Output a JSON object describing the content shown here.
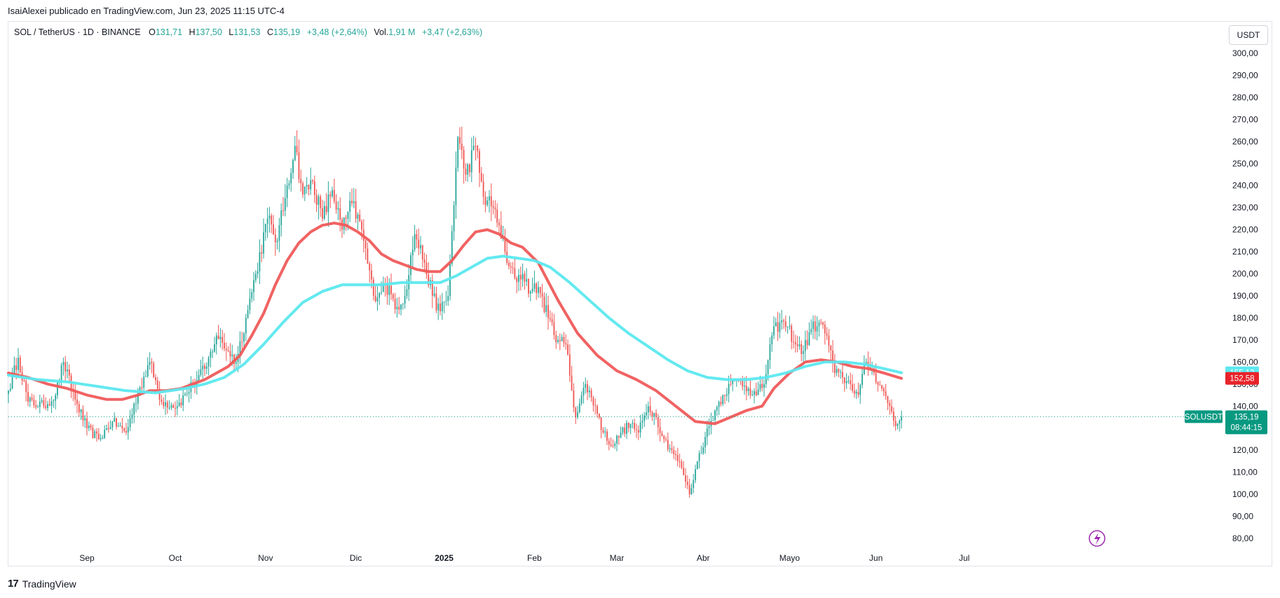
{
  "header": {
    "publisher_line": "IsaiAlexei publicado en TradingView.com, Jun 23, 2025 11:15 UTC-4"
  },
  "legend": {
    "symbol": "SOL / TetherUS · 1D · BINANCE",
    "open_label": "O",
    "open_value": "131,71",
    "high_label": "H",
    "high_value": "137,50",
    "low_label": "L",
    "low_value": "131,53",
    "close_label": "C",
    "close_value": "135,19",
    "change": "+3,48 (+2,64%)",
    "volume_label": "Vol.",
    "volume_value": "1,91 M",
    "volume_change": "+3,47 (+2,63%)"
  },
  "currency_button": "USDT",
  "brand": {
    "name": "TradingView",
    "logo": "17"
  },
  "colors": {
    "up": "#26a69a",
    "down": "#ef5350",
    "ma_fast": "#f05a5a",
    "ma_slow": "#5ce8ef",
    "last_price": "#089981",
    "ma_fast_badge": "#e8232a",
    "ma_slow_badge": "#5ce8ef",
    "lightning_icon": "#9c27b0"
  },
  "chart_data": {
    "type": "candlestick",
    "title": "SOL / TetherUS · 1D · BINANCE",
    "ylim": [
      75,
      303
    ],
    "y_ticks": [
      "300,00",
      "290,00",
      "280,00",
      "270,00",
      "260,00",
      "250,00",
      "240,00",
      "230,00",
      "220,00",
      "210,00",
      "200,00",
      "190,00",
      "180,00",
      "170,00",
      "160,00",
      "150,00",
      "140,00",
      "130,00",
      "120,00",
      "110,00",
      "100,00",
      "90,00",
      "80,00"
    ],
    "x_ticks": [
      "Sep",
      "Oct",
      "Nov",
      "Dic",
      "2025",
      "Feb",
      "Mar",
      "Abr",
      "Mayo",
      "Jun",
      "Jul"
    ],
    "x_ticks_bold": [
      "2025"
    ],
    "last_price": {
      "symbol": "SOLUSDT",
      "value": 135.19,
      "label": "135,19",
      "countdown": "08:44:15"
    },
    "ma_badges": [
      {
        "series": "ma_slow",
        "value": 155.12,
        "label": "155,12"
      },
      {
        "series": "ma_fast",
        "value": 152.58,
        "label": "152,58"
      }
    ],
    "close_anchors": [
      {
        "d": 0,
        "v": 147
      },
      {
        "d": 5,
        "v": 162
      },
      {
        "d": 10,
        "v": 142
      },
      {
        "d": 18,
        "v": 140
      },
      {
        "d": 24,
        "v": 145
      },
      {
        "d": 28,
        "v": 160
      },
      {
        "d": 34,
        "v": 143
      },
      {
        "d": 40,
        "v": 130
      },
      {
        "d": 46,
        "v": 125
      },
      {
        "d": 53,
        "v": 133
      },
      {
        "d": 60,
        "v": 128
      },
      {
        "d": 66,
        "v": 146
      },
      {
        "d": 72,
        "v": 160
      },
      {
        "d": 78,
        "v": 142
      },
      {
        "d": 86,
        "v": 140
      },
      {
        "d": 94,
        "v": 150
      },
      {
        "d": 101,
        "v": 158
      },
      {
        "d": 106,
        "v": 172
      },
      {
        "d": 112,
        "v": 165
      },
      {
        "d": 116,
        "v": 160
      },
      {
        "d": 121,
        "v": 180
      },
      {
        "d": 126,
        "v": 200
      },
      {
        "d": 132,
        "v": 225
      },
      {
        "d": 137,
        "v": 215
      },
      {
        "d": 142,
        "v": 240
      },
      {
        "d": 146,
        "v": 258
      },
      {
        "d": 150,
        "v": 236
      },
      {
        "d": 155,
        "v": 242
      },
      {
        "d": 160,
        "v": 225
      },
      {
        "d": 165,
        "v": 238
      },
      {
        "d": 170,
        "v": 220
      },
      {
        "d": 175,
        "v": 232
      },
      {
        "d": 180,
        "v": 220
      },
      {
        "d": 186,
        "v": 190
      },
      {
        "d": 192,
        "v": 195
      },
      {
        "d": 198,
        "v": 185
      },
      {
        "d": 202,
        "v": 190
      },
      {
        "d": 207,
        "v": 218
      },
      {
        "d": 212,
        "v": 205
      },
      {
        "d": 216,
        "v": 190
      },
      {
        "d": 220,
        "v": 183
      },
      {
        "d": 224,
        "v": 190
      },
      {
        "d": 229,
        "v": 262
      },
      {
        "d": 233,
        "v": 245
      },
      {
        "d": 238,
        "v": 258
      },
      {
        "d": 242,
        "v": 235
      },
      {
        "d": 247,
        "v": 230
      },
      {
        "d": 250,
        "v": 222
      },
      {
        "d": 254,
        "v": 205
      },
      {
        "d": 258,
        "v": 198
      },
      {
        "d": 262,
        "v": 200
      },
      {
        "d": 266,
        "v": 192
      },
      {
        "d": 270,
        "v": 194
      },
      {
        "d": 275,
        "v": 180
      },
      {
        "d": 280,
        "v": 170
      },
      {
        "d": 284,
        "v": 168
      },
      {
        "d": 289,
        "v": 135
      },
      {
        "d": 294,
        "v": 150
      },
      {
        "d": 299,
        "v": 140
      },
      {
        "d": 303,
        "v": 128
      },
      {
        "d": 308,
        "v": 122
      },
      {
        "d": 312,
        "v": 128
      },
      {
        "d": 317,
        "v": 132
      },
      {
        "d": 321,
        "v": 128
      },
      {
        "d": 326,
        "v": 140
      },
      {
        "d": 330,
        "v": 135
      },
      {
        "d": 334,
        "v": 125
      },
      {
        "d": 338,
        "v": 120
      },
      {
        "d": 343,
        "v": 112
      },
      {
        "d": 347,
        "v": 100
      },
      {
        "d": 351,
        "v": 115
      },
      {
        "d": 355,
        "v": 126
      },
      {
        "d": 360,
        "v": 138
      },
      {
        "d": 364,
        "v": 145
      },
      {
        "d": 368,
        "v": 150
      },
      {
        "d": 372,
        "v": 152
      },
      {
        "d": 377,
        "v": 148
      },
      {
        "d": 381,
        "v": 145
      },
      {
        "d": 385,
        "v": 150
      },
      {
        "d": 389,
        "v": 172
      },
      {
        "d": 393,
        "v": 178
      },
      {
        "d": 397,
        "v": 176
      },
      {
        "d": 401,
        "v": 168
      },
      {
        "d": 405,
        "v": 165
      },
      {
        "d": 409,
        "v": 175
      },
      {
        "d": 413,
        "v": 178
      },
      {
        "d": 417,
        "v": 172
      },
      {
        "d": 421,
        "v": 155
      },
      {
        "d": 425,
        "v": 153
      },
      {
        "d": 429,
        "v": 150
      },
      {
        "d": 433,
        "v": 145
      },
      {
        "d": 437,
        "v": 160
      },
      {
        "d": 441,
        "v": 155
      },
      {
        "d": 445,
        "v": 148
      },
      {
        "d": 449,
        "v": 140
      },
      {
        "d": 452,
        "v": 131
      },
      {
        "d": 455,
        "v": 135.19
      }
    ],
    "series": [
      {
        "key": "ma_fast",
        "type": "line",
        "points": [
          [
            0,
            155
          ],
          [
            10,
            153
          ],
          [
            20,
            150
          ],
          [
            30,
            148
          ],
          [
            40,
            145
          ],
          [
            50,
            143
          ],
          [
            58,
            143
          ],
          [
            66,
            145
          ],
          [
            72,
            147
          ],
          [
            80,
            147
          ],
          [
            88,
            148
          ],
          [
            94,
            150
          ],
          [
            100,
            152
          ],
          [
            106,
            155
          ],
          [
            112,
            158
          ],
          [
            118,
            163
          ],
          [
            124,
            172
          ],
          [
            130,
            182
          ],
          [
            136,
            195
          ],
          [
            142,
            206
          ],
          [
            148,
            214
          ],
          [
            154,
            219
          ],
          [
            160,
            222
          ],
          [
            166,
            223
          ],
          [
            172,
            222
          ],
          [
            178,
            219
          ],
          [
            184,
            215
          ],
          [
            190,
            209
          ],
          [
            196,
            206
          ],
          [
            202,
            204
          ],
          [
            208,
            202
          ],
          [
            214,
            201
          ],
          [
            220,
            201
          ],
          [
            226,
            206
          ],
          [
            232,
            213
          ],
          [
            238,
            219
          ],
          [
            244,
            220
          ],
          [
            250,
            218
          ],
          [
            256,
            214
          ],
          [
            262,
            212
          ],
          [
            270,
            205
          ],
          [
            280,
            188
          ],
          [
            290,
            173
          ],
          [
            300,
            163
          ],
          [
            310,
            156
          ],
          [
            320,
            152
          ],
          [
            330,
            147
          ],
          [
            340,
            140
          ],
          [
            350,
            133
          ],
          [
            360,
            132
          ],
          [
            368,
            135
          ],
          [
            376,
            138
          ],
          [
            384,
            140
          ],
          [
            390,
            148
          ],
          [
            398,
            155
          ],
          [
            406,
            160
          ],
          [
            414,
            161
          ],
          [
            422,
            160
          ],
          [
            430,
            158
          ],
          [
            438,
            157
          ],
          [
            446,
            155
          ],
          [
            455,
            152.58
          ]
        ]
      },
      {
        "key": "ma_slow",
        "type": "line",
        "points": [
          [
            0,
            154
          ],
          [
            15,
            152
          ],
          [
            30,
            151
          ],
          [
            45,
            149
          ],
          [
            60,
            147
          ],
          [
            75,
            146
          ],
          [
            90,
            148
          ],
          [
            100,
            150
          ],
          [
            110,
            153
          ],
          [
            120,
            159
          ],
          [
            130,
            168
          ],
          [
            140,
            178
          ],
          [
            150,
            187
          ],
          [
            160,
            192
          ],
          [
            170,
            195
          ],
          [
            180,
            195
          ],
          [
            190,
            195
          ],
          [
            200,
            196
          ],
          [
            210,
            196
          ],
          [
            220,
            196
          ],
          [
            228,
            199
          ],
          [
            236,
            203
          ],
          [
            244,
            207
          ],
          [
            252,
            208
          ],
          [
            260,
            207
          ],
          [
            268,
            206
          ],
          [
            276,
            203
          ],
          [
            286,
            196
          ],
          [
            296,
            188
          ],
          [
            306,
            180
          ],
          [
            316,
            173
          ],
          [
            326,
            167
          ],
          [
            336,
            161
          ],
          [
            346,
            156
          ],
          [
            356,
            153
          ],
          [
            366,
            152
          ],
          [
            376,
            152
          ],
          [
            386,
            153
          ],
          [
            396,
            155
          ],
          [
            406,
            158
          ],
          [
            416,
            160
          ],
          [
            426,
            160
          ],
          [
            436,
            159
          ],
          [
            446,
            157
          ],
          [
            455,
            155.12
          ]
        ]
      }
    ]
  }
}
